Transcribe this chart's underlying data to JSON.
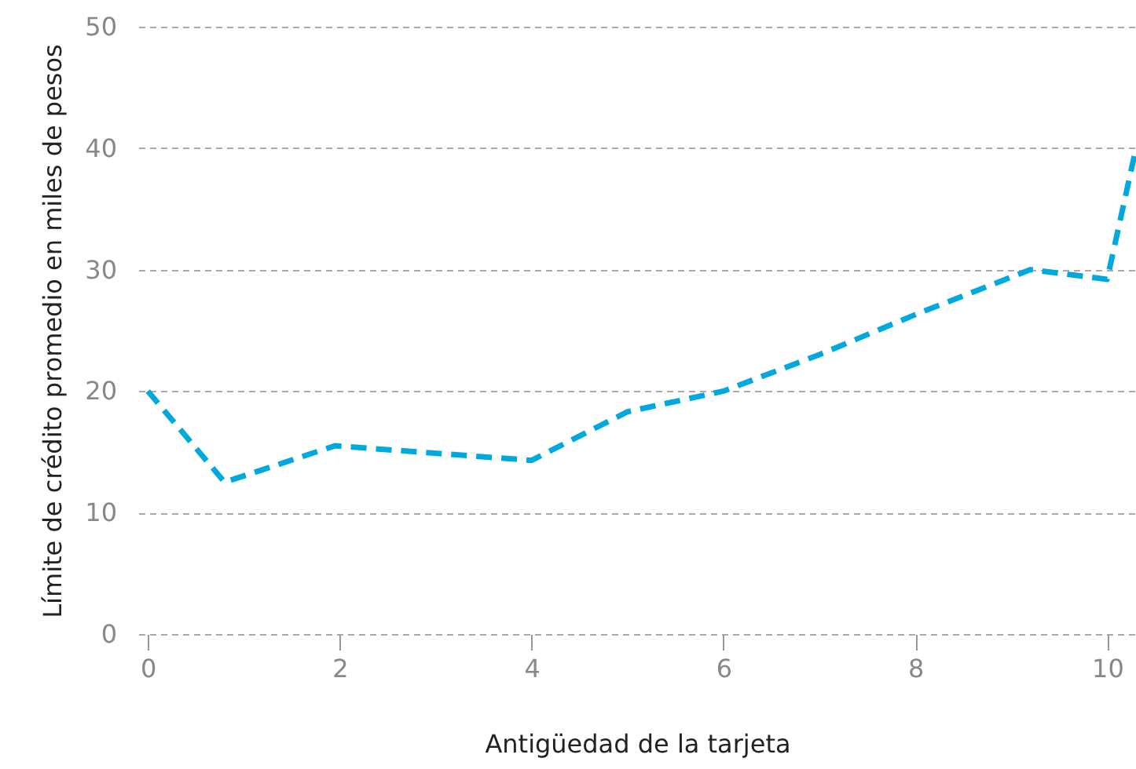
{
  "chart_data": {
    "type": "line",
    "xlabel": "Antigüedad de la tarjeta",
    "ylabel": "Límite de crédito promedio en miles de pesos",
    "x": [
      0,
      0.8,
      1.95,
      4,
      5,
      6,
      7,
      8,
      9.2,
      10,
      10.3
    ],
    "series": [
      {
        "color": "#00a8e0",
        "values": [
          20,
          12.5,
          15.5,
          14.3,
          18.3,
          20,
          23,
          26.3,
          30,
          29.2,
          40
        ]
      }
    ],
    "xlim": [
      -0.1,
      10.3
    ],
    "ylim": [
      0,
      50
    ],
    "xticks": [
      0,
      2,
      4,
      6,
      8,
      10
    ],
    "yticks": [
      0,
      10,
      20,
      30,
      40,
      50
    ],
    "grid": "y",
    "line_style": "dashed",
    "marker": "none"
  }
}
